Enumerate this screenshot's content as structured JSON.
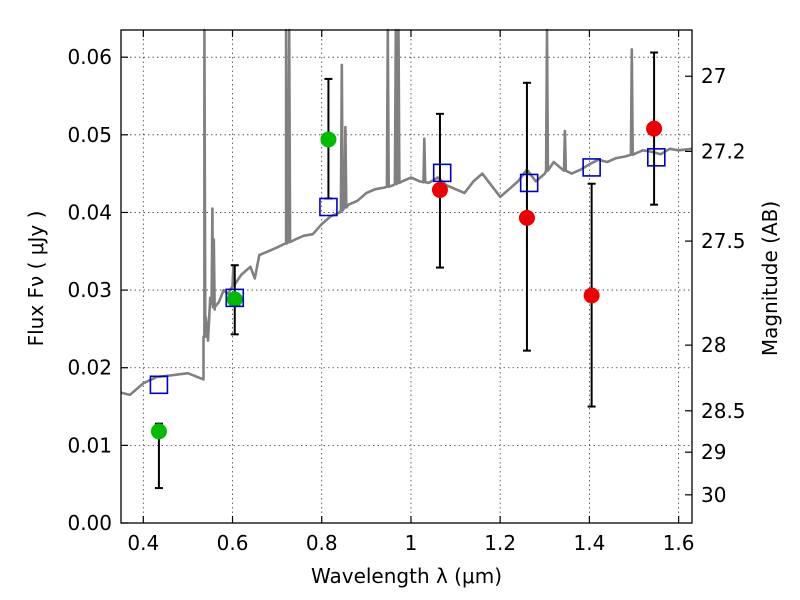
{
  "chart_data": {
    "type": "scatter",
    "xlabel": "Wavelength  λ (μm)",
    "ylabel": "Flux  Fν  ( μJy )",
    "y2label": "Magnitude (AB)",
    "xlim": [
      0.35,
      1.63
    ],
    "ylim": [
      0.0,
      0.0635
    ],
    "grid": true,
    "x_ticks": [
      {
        "value": 0.4,
        "label": "0.4"
      },
      {
        "value": 0.6,
        "label": "0.6"
      },
      {
        "value": 0.8,
        "label": "0.8"
      },
      {
        "value": 1.0,
        "label": "1"
      },
      {
        "value": 1.2,
        "label": "1.2"
      },
      {
        "value": 1.4,
        "label": "1.4"
      },
      {
        "value": 1.6,
        "label": "1.6"
      }
    ],
    "y_ticks": [
      {
        "value": 0.0,
        "label": "0.00"
      },
      {
        "value": 0.01,
        "label": "0.01"
      },
      {
        "value": 0.02,
        "label": "0.02"
      },
      {
        "value": 0.03,
        "label": "0.03"
      },
      {
        "value": 0.04,
        "label": "0.04"
      },
      {
        "value": 0.05,
        "label": "0.05"
      },
      {
        "value": 0.06,
        "label": "0.06"
      }
    ],
    "y2_ticks": [
      {
        "mag": 27,
        "label": "27"
      },
      {
        "mag": 27.2,
        "label": "27.2"
      },
      {
        "mag": 27.5,
        "label": "27.5"
      },
      {
        "mag": 28,
        "label": "28"
      },
      {
        "mag": 28.5,
        "label": "28.5"
      },
      {
        "mag": 29,
        "label": "29"
      },
      {
        "mag": 30,
        "label": "30"
      }
    ],
    "colors": {
      "spectrum": "#808080",
      "green": "#00bb00",
      "red": "#ee0000",
      "model": "#0000cc",
      "errorbar": "#000000"
    },
    "series": [
      {
        "kind": "spectrum",
        "x": [
          0.35,
          0.37,
          0.4,
          0.43,
          0.46,
          0.5,
          0.535,
          0.537,
          0.54,
          0.545,
          0.55,
          0.56,
          0.57,
          0.58,
          0.59,
          0.6,
          0.62,
          0.64,
          0.65,
          0.66,
          0.68,
          0.7,
          0.72,
          0.74,
          0.76,
          0.78,
          0.8,
          0.82,
          0.84,
          0.86,
          0.88,
          0.9,
          0.92,
          0.94,
          0.96,
          0.98,
          1.0,
          1.02,
          1.04,
          1.06,
          1.08,
          1.1,
          1.12,
          1.14,
          1.16,
          1.18,
          1.2,
          1.22,
          1.24,
          1.26,
          1.28,
          1.3,
          1.32,
          1.34,
          1.36,
          1.38,
          1.4,
          1.42,
          1.44,
          1.46,
          1.48,
          1.5,
          1.52,
          1.54,
          1.56,
          1.58,
          1.6,
          1.63
        ],
        "y": [
          0.0168,
          0.0165,
          0.018,
          0.0188,
          0.019,
          0.0193,
          0.0185,
          0.024,
          0.0265,
          0.0235,
          0.029,
          0.0275,
          0.0285,
          0.03,
          0.0295,
          0.0305,
          0.032,
          0.033,
          0.0315,
          0.0345,
          0.035,
          0.0355,
          0.036,
          0.0365,
          0.037,
          0.0372,
          0.0385,
          0.0395,
          0.04,
          0.041,
          0.0415,
          0.0425,
          0.043,
          0.0432,
          0.0435,
          0.044,
          0.0445,
          0.044,
          0.0438,
          0.0445,
          0.0435,
          0.043,
          0.0425,
          0.044,
          0.045,
          0.0435,
          0.042,
          0.043,
          0.044,
          0.0455,
          0.044,
          0.045,
          0.0465,
          0.0455,
          0.045,
          0.0455,
          0.0462,
          0.0468,
          0.0465,
          0.047,
          0.0472,
          0.0475,
          0.048,
          0.0478,
          0.0475,
          0.0482,
          0.048,
          0.0482
        ]
      },
      {
        "kind": "points",
        "color": "green",
        "x": [
          0.435,
          0.605,
          0.815
        ],
        "y": [
          0.0118,
          0.0288,
          0.0494
        ],
        "yerr_low": [
          0.0045,
          0.0243,
          0.0418
        ],
        "yerr_high": [
          0.0128,
          0.0332,
          0.0572
        ]
      },
      {
        "kind": "points",
        "color": "red",
        "x": [
          1.065,
          1.26,
          1.405,
          1.545
        ],
        "y": [
          0.0429,
          0.0393,
          0.0293,
          0.0508
        ],
        "yerr_low": [
          0.0329,
          0.0222,
          0.015,
          0.041
        ],
        "yerr_high": [
          0.0527,
          0.0567,
          0.0437,
          0.0606
        ]
      },
      {
        "kind": "model",
        "color": "model",
        "x": [
          0.435,
          0.605,
          0.815,
          1.07,
          1.265,
          1.405,
          1.55
        ],
        "y": [
          0.0178,
          0.029,
          0.0407,
          0.0451,
          0.0438,
          0.0458,
          0.0471
        ]
      }
    ],
    "emission_lines": [
      {
        "x": 0.537,
        "peak": 0.0635
      },
      {
        "x": 0.555,
        "peak": 0.0405
      },
      {
        "x": 0.558,
        "peak": 0.0365
      },
      {
        "x": 0.602,
        "peak": 0.033
      },
      {
        "x": 0.72,
        "peak": 0.0635
      },
      {
        "x": 0.727,
        "peak": 0.0635
      },
      {
        "x": 0.845,
        "peak": 0.059
      },
      {
        "x": 0.853,
        "peak": 0.051
      },
      {
        "x": 0.948,
        "peak": 0.0635
      },
      {
        "x": 0.966,
        "peak": 0.0635
      },
      {
        "x": 0.972,
        "peak": 0.0635
      },
      {
        "x": 1.03,
        "peak": 0.0495
      },
      {
        "x": 1.305,
        "peak": 0.0635
      },
      {
        "x": 1.495,
        "peak": 0.061
      },
      {
        "x": 1.345,
        "peak": 0.0505
      }
    ]
  }
}
